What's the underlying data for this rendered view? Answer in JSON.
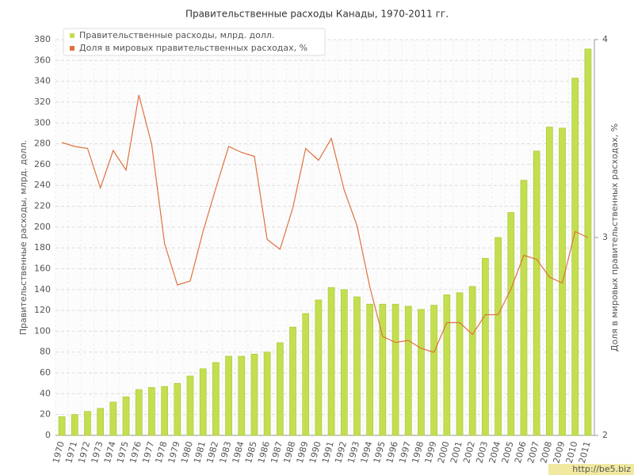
{
  "chart_data": {
    "type": "bar_line",
    "title": "Правительственные расходы Канады, 1970-2011 гг.",
    "y_label": "Правительственные расходы, млрд. долл.",
    "y2_label": "Доля в мировых правительственных расходах, %",
    "watermark": "http://be5.biz",
    "categories": [
      "1970",
      "1971",
      "1972",
      "1973",
      "1974",
      "1975",
      "1976",
      "1977",
      "1978",
      "1979",
      "1980",
      "1981",
      "1982",
      "1983",
      "1984",
      "1985",
      "1986",
      "1987",
      "1988",
      "1989",
      "1990",
      "1991",
      "1992",
      "1993",
      "1994",
      "1995",
      "1996",
      "1997",
      "1998",
      "1999",
      "2000",
      "2001",
      "2002",
      "2003",
      "2004",
      "2005",
      "2006",
      "2007",
      "2008",
      "2009",
      "2010",
      "2011"
    ],
    "series": [
      {
        "name": "Правительственные расходы, млрд. долл.",
        "type": "bar",
        "color": "#c3df4f",
        "values": [
          18,
          20,
          23,
          26,
          32,
          37,
          44,
          46,
          47,
          50,
          57,
          64,
          70,
          76,
          76,
          78,
          80,
          89,
          104,
          117,
          130,
          142,
          140,
          133,
          126,
          126,
          126,
          124,
          121,
          125,
          135,
          137,
          143,
          170,
          190,
          214,
          245,
          273,
          296,
          295,
          343,
          371
        ]
      },
      {
        "name": "Доля в мировых правительственных расходах, %",
        "type": "line",
        "color": "#e07040",
        "axis": "y2",
        "values": [
          3.48,
          3.46,
          3.45,
          3.25,
          3.44,
          3.34,
          3.72,
          3.47,
          2.97,
          2.76,
          2.78,
          3.03,
          3.25,
          3.46,
          3.43,
          3.41,
          2.99,
          2.94,
          3.15,
          3.45,
          3.39,
          3.5,
          3.24,
          3.06,
          2.75,
          2.5,
          2.47,
          2.48,
          2.44,
          2.42,
          2.57,
          2.57,
          2.51,
          2.61,
          2.61,
          2.74,
          2.91,
          2.89,
          2.8,
          2.77,
          3.03,
          3.0
        ]
      }
    ],
    "ylim": [
      0,
      380
    ],
    "yticks": [
      0,
      20,
      40,
      60,
      80,
      100,
      120,
      140,
      160,
      180,
      200,
      220,
      240,
      260,
      280,
      300,
      320,
      340,
      360,
      380
    ],
    "y2lim": [
      2,
      4
    ],
    "y2ticks": [
      2,
      3,
      4
    ],
    "grid": true,
    "legend": "top-left"
  }
}
